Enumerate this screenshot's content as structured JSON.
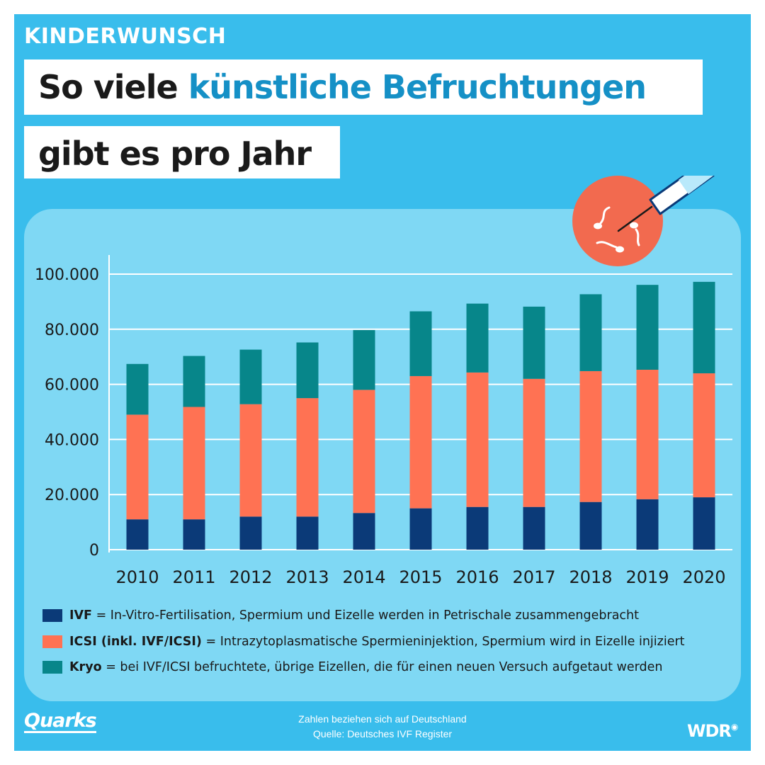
{
  "kicker": "KINDERWUNSCH",
  "title": {
    "line1_part1": "So viele ",
    "line1_highlight": "künstliche Befruchtungen",
    "line2": "gibt es pro Jahr"
  },
  "chart_data": {
    "type": "bar",
    "stacked": true,
    "categories": [
      "2010",
      "2011",
      "2012",
      "2013",
      "2014",
      "2015",
      "2016",
      "2017",
      "2018",
      "2019",
      "2020"
    ],
    "series": [
      {
        "name": "IVF",
        "color": "#0b3a78",
        "values": [
          11000,
          11000,
          12000,
          12000,
          13300,
          15000,
          15500,
          15500,
          17300,
          18300,
          19000
        ]
      },
      {
        "name": "ICSI (inkl. IVF/ICSI)",
        "color": "#ff7253",
        "values": [
          38000,
          40800,
          40800,
          43000,
          44700,
          48000,
          48800,
          46500,
          47500,
          47000,
          45000
        ]
      },
      {
        "name": "Kryo",
        "color": "#07868a",
        "values": [
          18400,
          18500,
          19800,
          20200,
          21700,
          23500,
          25000,
          26200,
          27900,
          30800,
          33200
        ]
      }
    ],
    "y_ticks": [
      "0",
      "20.000",
      "40.000",
      "60.000",
      "80.000",
      "100.000"
    ],
    "ylim": [
      0,
      100000
    ],
    "grid": true
  },
  "legend": [
    {
      "key": "IVF",
      "desc": " = In-Vitro-Fertilisation, Spermium und Eizelle werden in Petrischale zusammengebracht",
      "color": "#0b3a78"
    },
    {
      "key": "ICSI (inkl. IVF/ICSI)",
      "desc": " = Intrazytoplasmatische Spermieninjektion, Spermium wird in Eizelle injiziert",
      "color": "#ff7253"
    },
    {
      "key": "Kryo",
      "desc": " = bei IVF/ICSI befruchtete, übrige Eizellen, die für einen neuen Versuch aufgetaut werden",
      "color": "#07868a"
    }
  ],
  "footer": {
    "note": "Zahlen beziehen sich auf Deutschland",
    "source": "Quelle: Deutsches IVF Register",
    "logo_left": "Quarks",
    "logo_right": "WDR"
  },
  "colors": {
    "background": "#39bdec",
    "panel": "#7fd8f4",
    "highlight": "#1590c6",
    "emblem": "#f26a4f"
  },
  "icons": [
    "syringe-icon",
    "sperm-icon"
  ]
}
